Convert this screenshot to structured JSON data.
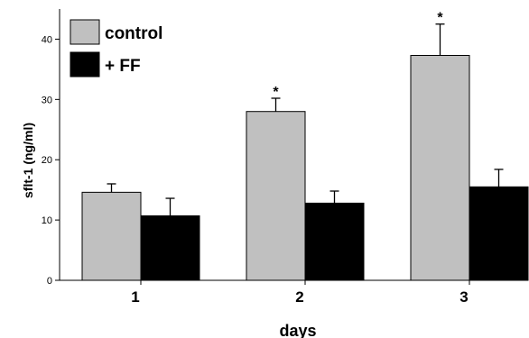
{
  "chart_data": {
    "type": "bar",
    "title": "",
    "xlabel": "days",
    "ylabel": "sflt-1 (ng/ml)",
    "categories": [
      "1",
      "2",
      "3"
    ],
    "ylim": [
      0,
      45
    ],
    "yticks": [
      0,
      10,
      20,
      30,
      40
    ],
    "grid": false,
    "legend_position": "top-left",
    "series": [
      {
        "name": "control",
        "color": "#c0c0c0",
        "values": [
          14.6,
          28.0,
          37.3
        ],
        "errors": [
          1.4,
          2.2,
          5.2
        ],
        "significant": [
          false,
          true,
          true
        ]
      },
      {
        "name": "+ FF",
        "color": "#000000",
        "values": [
          10.7,
          12.8,
          15.5
        ],
        "errors": [
          2.9,
          2.0,
          2.9
        ],
        "significant": [
          false,
          false,
          false
        ]
      }
    ],
    "significance_marker": "*"
  }
}
